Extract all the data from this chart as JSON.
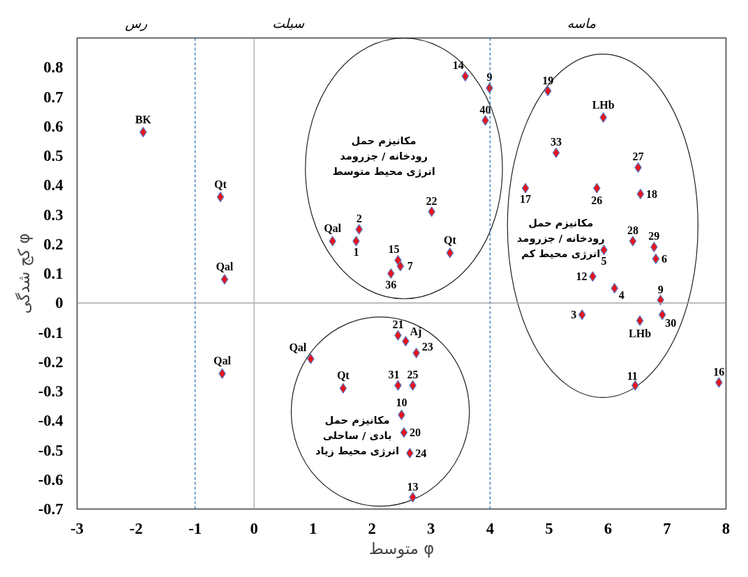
{
  "chart_data": {
    "type": "scatter",
    "xlabel": "متوسط φ",
    "ylabel": "کج شدگی φ",
    "xlim": [
      -3,
      8
    ],
    "ylim": [
      -0.7,
      0.9
    ],
    "xticks": [
      -3,
      -2,
      -1,
      0,
      1,
      2,
      3,
      4,
      5,
      6,
      7,
      8
    ],
    "yticks": [
      -0.7,
      -0.6,
      -0.5,
      -0.4,
      -0.3,
      -0.2,
      -0.1,
      0,
      0.1,
      0.2,
      0.3,
      0.4,
      0.5,
      0.6,
      0.7,
      0.8
    ],
    "marker": "diamond",
    "grid": false,
    "series": [
      {
        "name": "BK",
        "color": "#e8141b",
        "x": [
          -1.88
        ],
        "values": [
          0.58
        ]
      },
      {
        "name": "Qt",
        "color": "#e8141b",
        "x": [
          -0.57
        ],
        "values": [
          0.36
        ]
      },
      {
        "name": "Qal",
        "color": "#e8141b",
        "x": [
          -0.5
        ],
        "values": [
          0.08
        ]
      },
      {
        "name": "Qal",
        "color": "#e8141b",
        "x": [
          -0.54
        ],
        "values": [
          -0.24
        ]
      },
      {
        "name": "14",
        "color": "#e8141b",
        "x": [
          3.58
        ],
        "values": [
          0.77
        ]
      },
      {
        "name": "9",
        "color": "#e8141b",
        "x": [
          3.99
        ],
        "values": [
          0.73
        ]
      },
      {
        "name": "40",
        "color": "#e8141b",
        "x": [
          3.92
        ],
        "values": [
          0.62
        ]
      },
      {
        "name": "22",
        "color": "#e8141b",
        "x": [
          3.01
        ],
        "values": [
          0.31
        ]
      },
      {
        "name": "2",
        "color": "#e8141b",
        "x": [
          1.78
        ],
        "values": [
          0.25
        ]
      },
      {
        "name": "1",
        "color": "#e8141b",
        "x": [
          1.73
        ],
        "values": [
          0.21
        ]
      },
      {
        "name": "Qal",
        "color": "#e8141b",
        "x": [
          1.33
        ],
        "values": [
          0.21
        ]
      },
      {
        "name": "Qt",
        "color": "#e8141b",
        "x": [
          3.32
        ],
        "values": [
          0.17
        ]
      },
      {
        "name": "15",
        "color": "#e8141b",
        "x": [
          2.44
        ],
        "values": [
          0.145
        ]
      },
      {
        "name": "7",
        "color": "#e8141b",
        "x": [
          2.48
        ],
        "values": [
          0.125
        ]
      },
      {
        "name": "36",
        "color": "#e8141b",
        "x": [
          2.32
        ],
        "values": [
          0.1
        ]
      },
      {
        "name": "21",
        "color": "#e8141b",
        "x": [
          2.44
        ],
        "values": [
          -0.11
        ]
      },
      {
        "name": "Aj",
        "color": "#e8141b",
        "x": [
          2.57
        ],
        "values": [
          -0.13
        ]
      },
      {
        "name": "23",
        "color": "#e8141b",
        "x": [
          2.75
        ],
        "values": [
          -0.17
        ]
      },
      {
        "name": "Qal",
        "color": "#e8141b",
        "x": [
          0.96
        ],
        "values": [
          -0.19
        ]
      },
      {
        "name": "Qt",
        "color": "#e8141b",
        "x": [
          1.51
        ],
        "values": [
          -0.29
        ]
      },
      {
        "name": "31",
        "color": "#e8141b",
        "x": [
          2.44
        ],
        "values": [
          -0.28
        ]
      },
      {
        "name": "25",
        "color": "#e8141b",
        "x": [
          2.69
        ],
        "values": [
          -0.28
        ]
      },
      {
        "name": "10",
        "color": "#e8141b",
        "x": [
          2.5
        ],
        "values": [
          -0.38
        ]
      },
      {
        "name": "20",
        "color": "#e8141b",
        "x": [
          2.54
        ],
        "values": [
          -0.44
        ]
      },
      {
        "name": "24",
        "color": "#e8141b",
        "x": [
          2.64
        ],
        "values": [
          -0.51
        ]
      },
      {
        "name": "13",
        "color": "#e8141b",
        "x": [
          2.69
        ],
        "values": [
          -0.66
        ]
      },
      {
        "name": "19",
        "color": "#e8141b",
        "x": [
          4.98
        ],
        "values": [
          0.72
        ]
      },
      {
        "name": "LHb",
        "color": "#e8141b",
        "x": [
          5.92
        ],
        "values": [
          0.63
        ]
      },
      {
        "name": "33",
        "color": "#e8141b",
        "x": [
          5.12
        ],
        "values": [
          0.51
        ]
      },
      {
        "name": "27",
        "color": "#e8141b",
        "x": [
          6.51
        ],
        "values": [
          0.46
        ]
      },
      {
        "name": "17",
        "color": "#e8141b",
        "x": [
          4.6
        ],
        "values": [
          0.39
        ]
      },
      {
        "name": "26",
        "color": "#e8141b",
        "x": [
          5.81
        ],
        "values": [
          0.39
        ]
      },
      {
        "name": "18",
        "color": "#e8141b",
        "x": [
          6.55
        ],
        "values": [
          0.37
        ]
      },
      {
        "name": "28",
        "color": "#e8141b",
        "x": [
          6.42
        ],
        "values": [
          0.21
        ]
      },
      {
        "name": "29",
        "color": "#e8141b",
        "x": [
          6.78
        ],
        "values": [
          0.19
        ]
      },
      {
        "name": "5",
        "color": "#e8141b",
        "x": [
          5.93
        ],
        "values": [
          0.18
        ]
      },
      {
        "name": "6",
        "color": "#e8141b",
        "x": [
          6.81
        ],
        "values": [
          0.15
        ]
      },
      {
        "name": "12",
        "color": "#e8141b",
        "x": [
          5.74
        ],
        "values": [
          0.09
        ]
      },
      {
        "name": "4",
        "color": "#e8141b",
        "x": [
          6.11
        ],
        "values": [
          0.05
        ]
      },
      {
        "name": "9",
        "color": "#e8141b",
        "x": [
          6.89
        ],
        "values": [
          0.01
        ]
      },
      {
        "name": "3",
        "color": "#e8141b",
        "x": [
          5.56
        ],
        "values": [
          -0.04
        ]
      },
      {
        "name": "LHb",
        "color": "#e8141b",
        "x": [
          6.54
        ],
        "values": [
          -0.06
        ]
      },
      {
        "name": "30",
        "color": "#e8141b",
        "x": [
          6.92
        ],
        "values": [
          -0.04
        ]
      },
      {
        "name": "11",
        "color": "#e8141b",
        "x": [
          6.46
        ],
        "values": [
          -0.28
        ]
      },
      {
        "name": "16",
        "color": "#e8141b",
        "x": [
          7.88
        ],
        "values": [
          -0.27
        ]
      }
    ],
    "ref_lines": [
      {
        "axis": "x",
        "value": -1,
        "color": "#2e75b6",
        "line_style": "dashed"
      },
      {
        "axis": "x",
        "value": 4,
        "color": "#2e75b6",
        "line_style": "dashed"
      },
      {
        "axis": "x",
        "value": 0,
        "color": "#a6a6a6",
        "line_style": "solid"
      },
      {
        "axis": "y",
        "value": 0,
        "color": "#a6a6a6",
        "line_style": "solid"
      }
    ],
    "annotations": [
      "رس",
      "سیلت",
      "ماسه",
      "مکانیزم حمل\nرودخانه / جزرومد\nانرژی محیط متوسط",
      "مکانیزم حمل\nرودخانه / جزرومد\nانرژی محیط کم",
      "مکانیزم حمل\nبادی / ساحلی\nانرژی محیط زیاد"
    ]
  }
}
